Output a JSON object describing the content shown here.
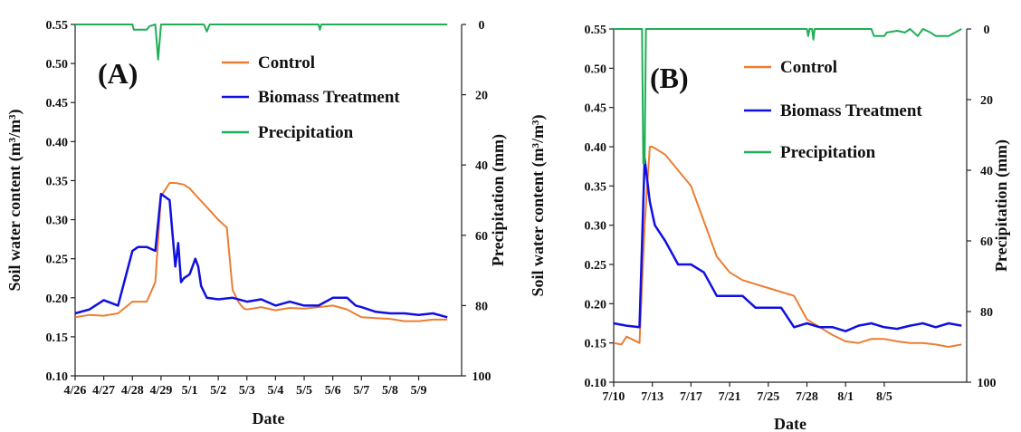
{
  "chart_data": [
    {
      "type": "line",
      "panel_label": "(A)",
      "xlabel": "Date",
      "ylabel": "Soil water content (m³/m³)",
      "y2label": "Precipitation (mm)",
      "ylim": [
        0.1,
        0.55
      ],
      "y2lim": [
        100,
        0
      ],
      "y2_inverted": true,
      "yticks": [
        "0.10",
        "0.15",
        "0.20",
        "0.25",
        "0.30",
        "0.35",
        "0.40",
        "0.45",
        "0.50",
        "0.55"
      ],
      "y2ticks": [
        "0",
        "20",
        "40",
        "60",
        "80",
        "100"
      ],
      "xticks": [
        "4/26",
        "4/27",
        "4/28",
        "4/29",
        "5/1",
        "5/2",
        "5/3",
        "5/4",
        "5/5",
        "5/6",
        "5/7",
        "5/8",
        "5/9"
      ],
      "legend_position": "top-right",
      "series": [
        {
          "name": "Control",
          "color": "#ED7D31",
          "x": [
            0,
            0.5,
            1,
            1.5,
            2,
            2.5,
            2.8,
            3,
            3.3,
            3.5,
            3.8,
            4,
            4.5,
            5,
            5.3,
            5.5,
            5.7,
            5.8,
            5.9,
            6,
            6.5,
            7,
            7.5,
            8,
            8.5,
            9,
            9.5,
            10,
            10.5,
            11,
            11.5,
            12,
            12.5,
            13
          ],
          "y": [
            0.175,
            0.178,
            0.177,
            0.18,
            0.195,
            0.195,
            0.22,
            0.33,
            0.347,
            0.347,
            0.345,
            0.34,
            0.32,
            0.3,
            0.29,
            0.21,
            0.195,
            0.19,
            0.186,
            0.185,
            0.188,
            0.184,
            0.187,
            0.186,
            0.188,
            0.19,
            0.185,
            0.175,
            0.174,
            0.173,
            0.17,
            0.17,
            0.172,
            0.172
          ]
        },
        {
          "name": "Biomass Treatment",
          "color": "#1010E0",
          "x": [
            0,
            0.5,
            1,
            1.5,
            2,
            2.2,
            2.5,
            2.8,
            3,
            3.3,
            3.5,
            3.6,
            3.7,
            3.8,
            4,
            4.2,
            4.3,
            4.4,
            4.6,
            5,
            5.5,
            6,
            6.5,
            7,
            7.5,
            8,
            8.5,
            9,
            9.5,
            9.8,
            10,
            10.5,
            11,
            11.5,
            12,
            12.5,
            13
          ],
          "y": [
            0.18,
            0.185,
            0.197,
            0.19,
            0.26,
            0.265,
            0.265,
            0.26,
            0.333,
            0.325,
            0.24,
            0.27,
            0.22,
            0.225,
            0.23,
            0.25,
            0.24,
            0.215,
            0.2,
            0.198,
            0.2,
            0.195,
            0.198,
            0.19,
            0.195,
            0.19,
            0.19,
            0.2,
            0.2,
            0.19,
            0.188,
            0.182,
            0.18,
            0.18,
            0.178,
            0.18,
            0.175
          ]
        },
        {
          "name": "Precipitation",
          "color": "#1FAE56",
          "axis": "secondary",
          "x": [
            0,
            2.0,
            2.05,
            2.5,
            2.6,
            2.8,
            2.9,
            3.0,
            3.1,
            3.2,
            4.5,
            4.6,
            4.7,
            4.8,
            8.5,
            8.55,
            8.6,
            13
          ],
          "y": [
            0,
            0,
            1.5,
            1.5,
            0.5,
            0,
            10,
            0,
            0,
            0,
            0,
            2,
            0,
            0,
            0,
            1.5,
            0,
            0
          ]
        }
      ]
    },
    {
      "type": "line",
      "panel_label": "(B)",
      "xlabel": "Date",
      "ylabel": "Soil water content (m³/m³)",
      "y2label": "Precipitation (mm)",
      "ylim": [
        0.1,
        0.55
      ],
      "y2lim": [
        100,
        0
      ],
      "y2_inverted": true,
      "yticks": [
        "0.10",
        "0.15",
        "0.20",
        "0.25",
        "0.30",
        "0.35",
        "0.40",
        "0.45",
        "0.50",
        "0.55"
      ],
      "y2ticks": [
        "0",
        "20",
        "40",
        "60",
        "80",
        "100"
      ],
      "xticks": [
        "7/10",
        "7/13",
        "7/17",
        "7/21",
        "7/25",
        "7/28",
        "8/1",
        "8/5"
      ],
      "legend_position": "top-right",
      "series": [
        {
          "name": "Control",
          "color": "#ED7D31",
          "x": [
            0,
            0.3,
            0.5,
            1,
            1.2,
            1.4,
            1.5,
            2,
            3,
            4,
            4.5,
            5,
            6,
            7,
            7.5,
            8,
            8.5,
            9,
            9.5,
            10,
            10.5,
            11,
            11.5,
            12,
            12.5,
            13,
            13.5
          ],
          "y": [
            0.15,
            0.148,
            0.158,
            0.15,
            0.3,
            0.4,
            0.4,
            0.39,
            0.35,
            0.26,
            0.24,
            0.23,
            0.22,
            0.21,
            0.18,
            0.17,
            0.16,
            0.152,
            0.15,
            0.155,
            0.155,
            0.152,
            0.15,
            0.15,
            0.148,
            0.145,
            0.148
          ]
        },
        {
          "name": "Biomass Treatment",
          "color": "#1010E0",
          "x": [
            0,
            0.5,
            1,
            1.2,
            1.4,
            1.6,
            2,
            2.5,
            3,
            3.5,
            4,
            4.5,
            5,
            5.5,
            6,
            6.5,
            7,
            7.5,
            8,
            8.5,
            9,
            9.5,
            10,
            10.5,
            11,
            11.5,
            12,
            12.5,
            13,
            13.5
          ],
          "y": [
            0.175,
            0.172,
            0.17,
            0.385,
            0.33,
            0.3,
            0.28,
            0.25,
            0.25,
            0.24,
            0.21,
            0.21,
            0.21,
            0.195,
            0.195,
            0.195,
            0.17,
            0.175,
            0.17,
            0.17,
            0.165,
            0.172,
            0.175,
            0.17,
            0.168,
            0.172,
            0.175,
            0.17,
            0.175,
            0.172
          ]
        },
        {
          "name": "Precipitation",
          "color": "#1FAE56",
          "axis": "secondary",
          "x": [
            0,
            1.1,
            1.15,
            1.2,
            1.25,
            7.5,
            7.55,
            7.6,
            7.7,
            7.75,
            7.8,
            8.5,
            9.0,
            10.0,
            10.1,
            10.5,
            10.6,
            11,
            11.3,
            11.5,
            11.8,
            12,
            12.3,
            12.5,
            13,
            13.5
          ],
          "y": [
            0,
            0,
            38,
            38,
            0,
            0,
            2,
            0,
            0,
            3,
            0,
            0,
            0,
            0,
            2,
            2,
            1,
            0.5,
            1,
            0,
            2,
            0,
            1,
            2,
            2,
            0
          ]
        }
      ]
    }
  ]
}
